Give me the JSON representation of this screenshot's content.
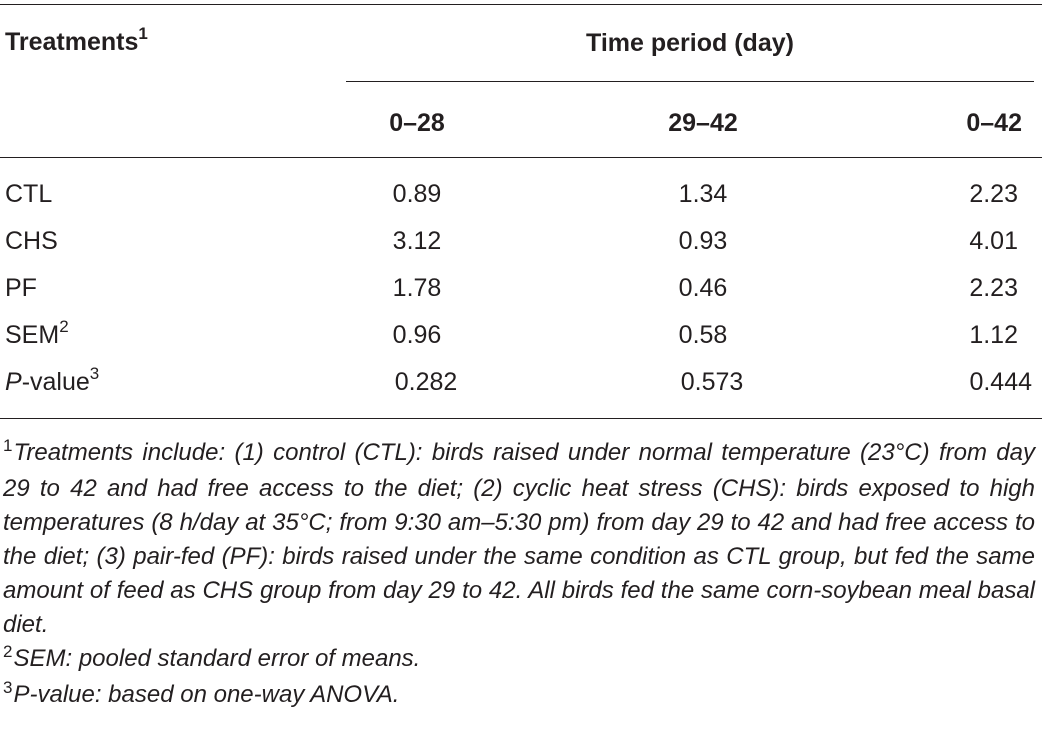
{
  "table": {
    "header": {
      "treatments_label": "Treatments",
      "treatments_sup": "1",
      "time_period_label": "Time period (day)",
      "columns": [
        "0–28",
        "29–42",
        "0–42"
      ]
    },
    "rows": [
      {
        "label": "CTL",
        "label_italic": "",
        "label_rest": "",
        "sup": "",
        "values": [
          "0.89",
          "1.34",
          "2.23"
        ]
      },
      {
        "label": "CHS",
        "label_italic": "",
        "label_rest": "",
        "sup": "",
        "values": [
          "3.12",
          "0.93",
          "4.01"
        ]
      },
      {
        "label": "PF",
        "label_italic": "",
        "label_rest": "",
        "sup": "",
        "values": [
          "1.78",
          "0.46",
          "2.23"
        ]
      },
      {
        "label": "SEM",
        "label_italic": "",
        "label_rest": "",
        "sup": "2",
        "values": [
          "0.96",
          "0.58",
          "1.12"
        ]
      },
      {
        "label": "",
        "label_italic": "P",
        "label_rest": "-value",
        "sup": "3",
        "values": [
          "0.282",
          "0.573",
          "0.444"
        ]
      }
    ]
  },
  "footnotes": [
    {
      "mark": "1",
      "text": "Treatments include: (1) control (CTL): birds raised under normal temperature (23°C) from day 29 to 42 and had free access to the diet; (2) cyclic heat stress (CHS): birds exposed to high temperatures (8 h/day at 35°C; from 9:30 am–5:30 pm) from day 29 to 42 and had free access to the diet; (3) pair-fed (PF): birds raised under the same condition as CTL group, but fed the same amount of feed as CHS group from day 29 to 42. All birds fed the same corn-soybean meal basal diet."
    },
    {
      "mark": "2",
      "text": "SEM: pooled standard error of means."
    },
    {
      "mark": "3",
      "text": "P-value: based on one-way ANOVA."
    }
  ]
}
